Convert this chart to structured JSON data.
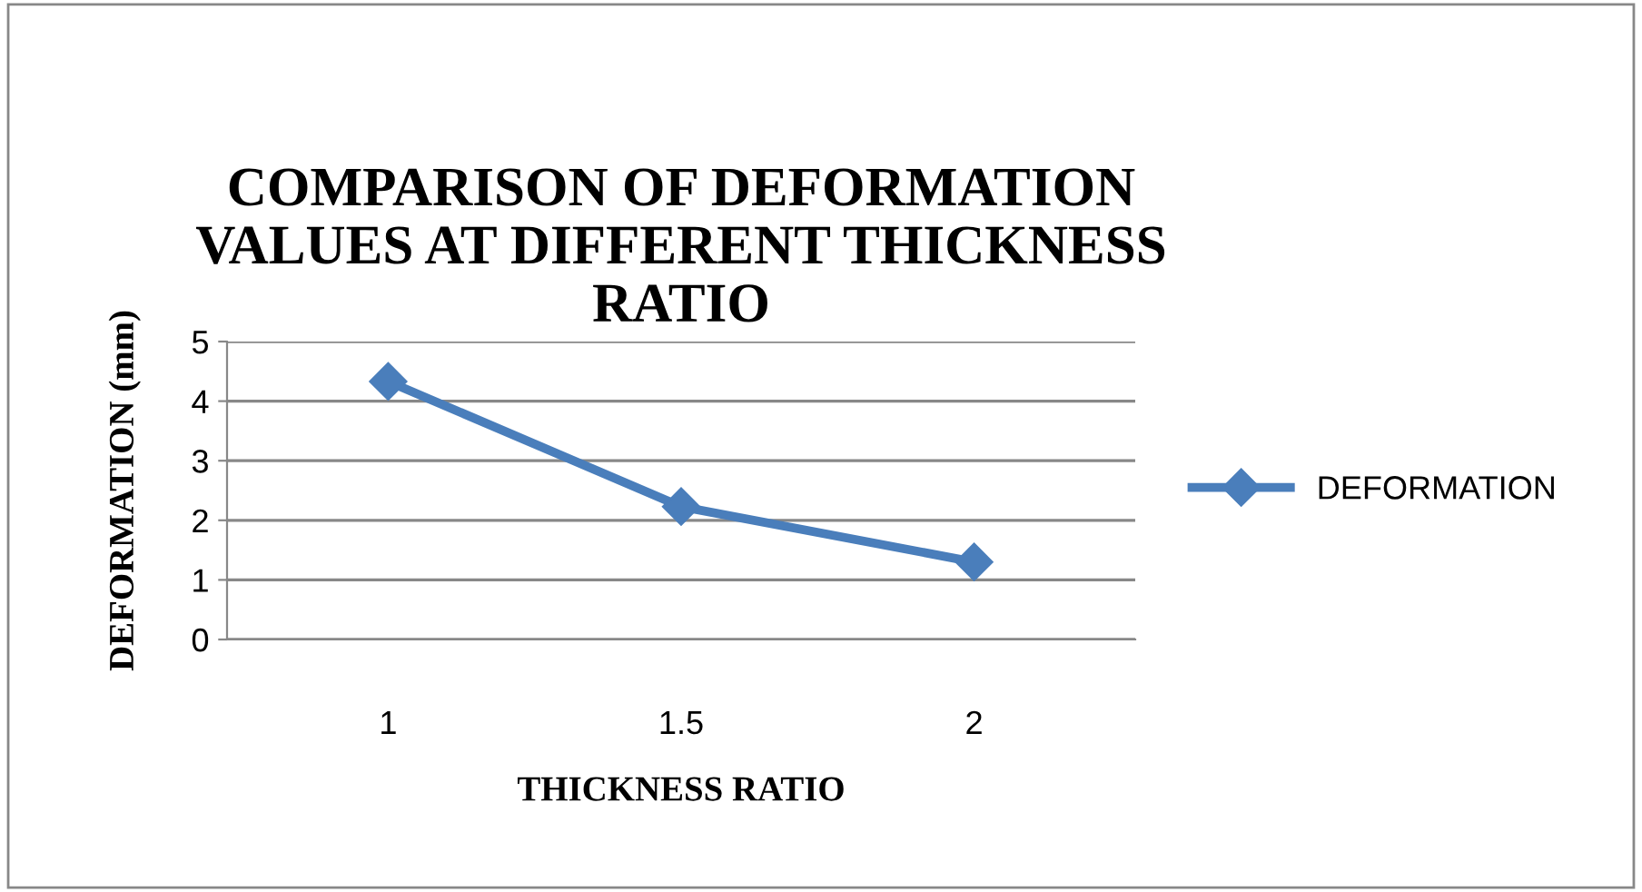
{
  "chart_data": {
    "type": "line",
    "title": "COMPARISON OF DEFORMATION\nVALUES AT DIFFERENT THICKNESS\nRATIO",
    "xlabel": "THICKNESS RATIO",
    "ylabel": "DEFORMATION (mm)",
    "categories": [
      "1",
      "1.5",
      "2"
    ],
    "series": [
      {
        "name": "DEFORMATION",
        "color": "#4a7ebb",
        "values": [
          4.33,
          2.23,
          1.3
        ]
      }
    ],
    "ylim": [
      0,
      5
    ],
    "yticks": [
      0,
      1,
      2,
      3,
      4,
      5
    ],
    "grid": "y",
    "legend": "right",
    "marker": "diamond",
    "line_style": "solid"
  }
}
